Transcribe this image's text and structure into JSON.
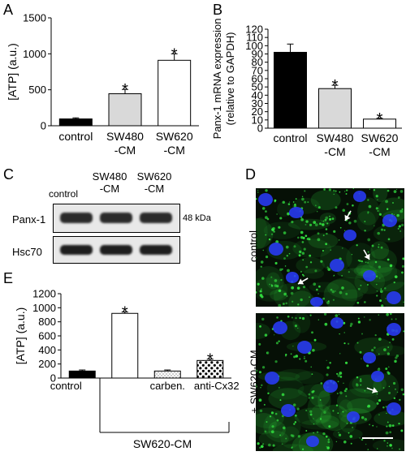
{
  "panels": {
    "A": "A",
    "B": "B",
    "C": "C",
    "D": "D",
    "E": "E"
  },
  "chart_data": [
    {
      "panel": "A",
      "type": "bar",
      "categories": [
        "control",
        "SW480\n-CM",
        "SW620\n-CM"
      ],
      "tick_labels": [
        [
          "control"
        ],
        [
          "SW480",
          "-CM"
        ],
        [
          "SW620",
          "-CM"
        ]
      ],
      "values": [
        95,
        445,
        910
      ],
      "errors": [
        15,
        60,
        90
      ],
      "significant": [
        false,
        true,
        true
      ],
      "bar_colors": [
        "#000000",
        "#d9d9d9",
        "#ffffff"
      ],
      "ylabel": "[ATP] (a.u.)",
      "ylim": [
        0,
        1500
      ],
      "yticks": [
        0,
        500,
        1000,
        1500
      ],
      "star": "*",
      "grid": false
    },
    {
      "panel": "B",
      "type": "bar",
      "categories": [
        "control",
        "SW480\n-CM",
        "SW620\n-CM"
      ],
      "tick_labels": [
        [
          "control"
        ],
        [
          "SW480",
          "-CM"
        ],
        [
          "SW620",
          "-CM"
        ]
      ],
      "values": [
        92,
        48,
        11
      ],
      "errors": [
        10,
        4,
        1
      ],
      "significant": [
        false,
        true,
        true
      ],
      "bar_colors": [
        "#000000",
        "#d9d9d9",
        "#ffffff"
      ],
      "ylabel": [
        "Panx-1 mRNA expression",
        "(relative to GAPDH)"
      ],
      "ylim": [
        0,
        120
      ],
      "yticks": [
        0,
        10,
        20,
        30,
        40,
        50,
        60,
        70,
        80,
        90,
        100,
        110,
        120
      ],
      "star": "*",
      "grid": false
    },
    {
      "panel": "E",
      "type": "bar",
      "categories": [
        "control",
        "SW620-CM",
        "carben.",
        "anti-Cx32"
      ],
      "tick_labels": [
        [
          "control"
        ],
        [
          ""
        ],
        [
          "carben."
        ],
        [
          "anti-Cx32"
        ]
      ],
      "values": [
        100,
        920,
        100,
        250
      ],
      "errors": [
        15,
        20,
        15,
        20
      ],
      "significant": [
        false,
        true,
        false,
        true
      ],
      "bar_colors": [
        "#000000",
        "#ffffff",
        "#ffffff",
        "#ffffff"
      ],
      "bar_patterns": [
        "solid",
        "solid",
        "fine-dots",
        "coarse-dots"
      ],
      "ylabel": "[ATP] (a.u.)",
      "ylim": [
        0,
        1200
      ],
      "yticks": [
        0,
        200,
        400,
        600,
        800,
        1000,
        1200
      ],
      "group_label": "SW620-CM",
      "star": "*",
      "grid": false
    }
  ],
  "western_blot": {
    "column_labels": [
      [
        "control"
      ],
      [
        "SW480",
        "-CM"
      ],
      [
        "SW620",
        "-CM"
      ]
    ],
    "rows": [
      {
        "label": "Panx-1",
        "size": "48 kDa"
      },
      {
        "label": "Hsc70",
        "size": ""
      }
    ]
  },
  "microscopy": {
    "top_label": "control",
    "bottom_label": "+ SW620-CM",
    "nucleus_color": "#2a3cff",
    "stain_color": "#33e040"
  }
}
